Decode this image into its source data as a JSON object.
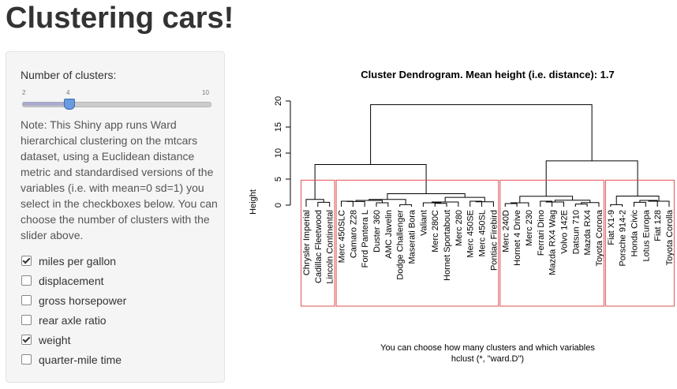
{
  "app": {
    "title": "Clustering cars!"
  },
  "controls": {
    "slider": {
      "label": "Number of clusters:",
      "min": "2",
      "max": "10",
      "value": "4",
      "value_fraction": 0.25
    },
    "note": "Note: This Shiny app runs Ward hierarchical clustering on the mtcars dataset, using a Euclidean distance metric and standardised versions of the variables (i.e. with mean=0 sd=1) you select in the checkboxes below. You can choose the number of clusters with the slider above.",
    "checkboxes": [
      {
        "label": "miles per gallon",
        "checked": true
      },
      {
        "label": "displacement",
        "checked": false
      },
      {
        "label": "gross horsepower",
        "checked": false
      },
      {
        "label": "rear axle ratio",
        "checked": false
      },
      {
        "label": "weight",
        "checked": true
      },
      {
        "label": "quarter-mile time",
        "checked": false
      }
    ]
  },
  "chart_data": {
    "type": "dendrogram",
    "title": "Cluster Dendrogram. Mean height (i.e. distance): 1.7",
    "ylabel": "Height",
    "xlabel_line1": "You can choose how many clusters and which variables",
    "xlabel_line2": "hclust (*, \"ward.D\")",
    "ylim": [
      0,
      20
    ],
    "yticks": [
      "0",
      "5",
      "10",
      "15",
      "20"
    ],
    "rect_color": "#e05050",
    "leaves": [
      "Chrysler Imperial",
      "Cadillac Fleetwood",
      "Lincoln Continental",
      "Merc 450SLC",
      "Camaro Z28",
      "Ford Pantera L",
      "Duster 360",
      "AMC Javelin",
      "Dodge Challenger",
      "Maserati Bora",
      "Valiant",
      "Merc 280C",
      "Hornet Sportabout",
      "Merc 280",
      "Merc 450SE",
      "Merc 450SL",
      "Pontiac Firebird",
      "Merc 240D",
      "Hornet 4 Drive",
      "Merc 230",
      "Ferrari Dino",
      "Mazda RX4 Wag",
      "Volvo 142E",
      "Datsun 710",
      "Mazda RX4",
      "Toyota Corona",
      "Fiat X1-9",
      "Porsche 914-2",
      "Honda Civic",
      "Lotus Europa",
      "Fiat 128",
      "Toyota Corolla"
    ],
    "merges": [
      [
        -2,
        -3,
        0.55
      ],
      [
        -1,
        1,
        1.1
      ],
      [
        -4,
        -5,
        0.75
      ],
      [
        -6,
        3,
        0.7
      ],
      [
        -7,
        -8,
        0.45
      ],
      [
        4,
        5,
        0.9
      ],
      [
        -9,
        -10,
        0.1
      ],
      [
        6,
        7,
        1.1
      ],
      [
        -12,
        -13,
        0.35
      ],
      [
        -11,
        9,
        0.45
      ],
      [
        -14,
        10,
        0.6
      ],
      [
        -15,
        -16,
        0.75
      ],
      [
        -17,
        12,
        0.65
      ],
      [
        11,
        13,
        1.5
      ],
      [
        8,
        14,
        2.2
      ],
      [
        2,
        15,
        7.8
      ],
      [
        -18,
        -19,
        0.3
      ],
      [
        -20,
        17,
        0.45
      ],
      [
        -21,
        -22,
        0.75
      ],
      [
        -23,
        19,
        0.6
      ],
      [
        -24,
        -25,
        0.2
      ],
      [
        -26,
        21,
        0.5
      ],
      [
        20,
        22,
        0.95
      ],
      [
        18,
        23,
        1.7
      ],
      [
        -27,
        -28,
        0.1
      ],
      [
        -29,
        -30,
        0.55
      ],
      [
        -31,
        26,
        0.9
      ],
      [
        -32,
        27,
        0.75
      ],
      [
        25,
        28,
        1.75
      ],
      [
        24,
        29,
        8.5
      ],
      [
        16,
        30,
        19.3
      ]
    ],
    "clusters": [
      {
        "start": 0,
        "end": 2
      },
      {
        "start": 3,
        "end": 16
      },
      {
        "start": 17,
        "end": 25
      },
      {
        "start": 26,
        "end": 31
      }
    ]
  }
}
